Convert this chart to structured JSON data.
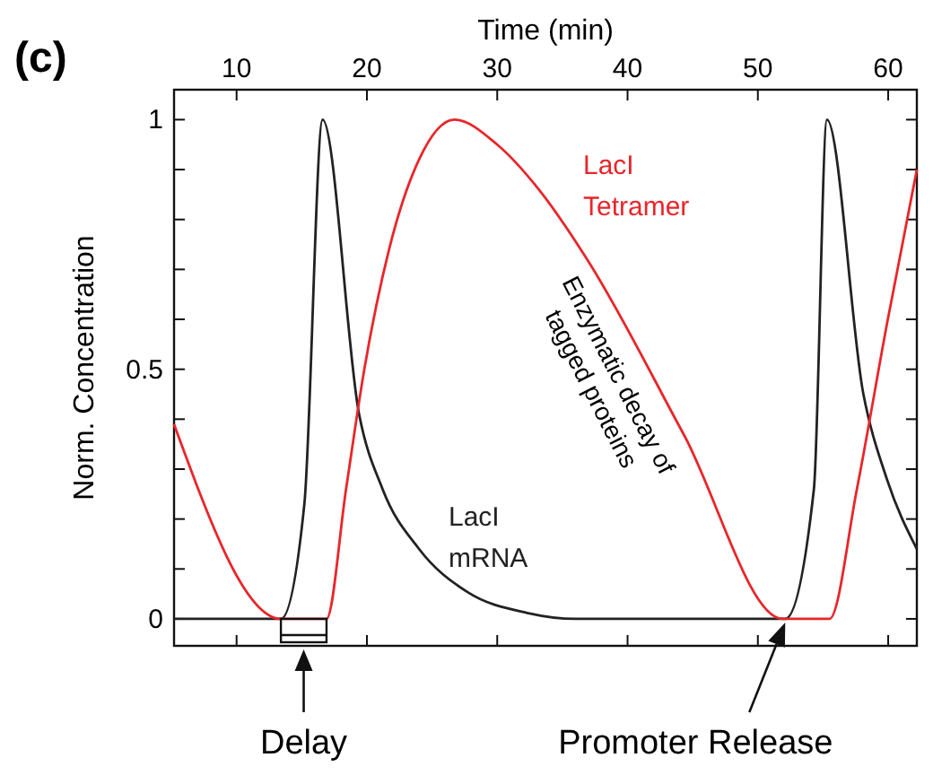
{
  "chart_data": {
    "type": "line",
    "xlabel": "Time (min)",
    "ylabel": "Norm. Concentration",
    "xlim": [
      5.2,
      62.2
    ],
    "xticks": [
      10,
      20,
      30,
      40,
      50,
      60
    ],
    "ylim": [
      -0.054,
      1.06
    ],
    "yticks": [
      0,
      {
        "value": 0.1,
        "label": null
      },
      {
        "value": 0.2,
        "label": null
      },
      {
        "value": 0.3,
        "label": null
      },
      {
        "value": 0.4,
        "label": null
      },
      0.5,
      {
        "value": 0.6,
        "label": null
      },
      {
        "value": 0.7,
        "label": null
      },
      {
        "value": 0.8,
        "label": null
      },
      {
        "value": 0.9,
        "label": null
      },
      1
    ],
    "grid": false,
    "marker": "none",
    "line_style": "solid",
    "series": [
      {
        "name": "LacI mRNA",
        "color": "#222222",
        "x": [
          5.2,
          13.4,
          15.2,
          16.6,
          19.4,
          21.2,
          24.0,
          27.7,
          32.3,
          36,
          52.1,
          54.3,
          55.3,
          58.1,
          59.9,
          62.2
        ],
        "values": [
          0,
          0,
          0.23,
          1,
          0.41,
          0.26,
          0.14,
          0.054,
          0.012,
          0,
          0,
          0.26,
          1,
          0.45,
          0.28,
          0.14
        ]
      },
      {
        "name": "LacI Tetramer",
        "color": "#e8262a",
        "x": [
          5.2,
          13.4,
          16.9,
          18.4,
          19.8,
          21.7,
          24.0,
          26.7,
          30.0,
          33.2,
          36.9,
          44.3,
          51.9,
          55.5,
          57.6,
          59.9,
          62.2
        ],
        "values": [
          0.39,
          0,
          0,
          0.26,
          0.5,
          0.74,
          0.92,
          1,
          0.95,
          0.86,
          0.72,
          0.37,
          0,
          0,
          0.26,
          0.59,
          0.9
        ]
      }
    ],
    "annotations": [
      "(c)",
      "Enzymatic decay of\ntagged proteins",
      "Delay",
      "Promoter Release"
    ]
  }
}
